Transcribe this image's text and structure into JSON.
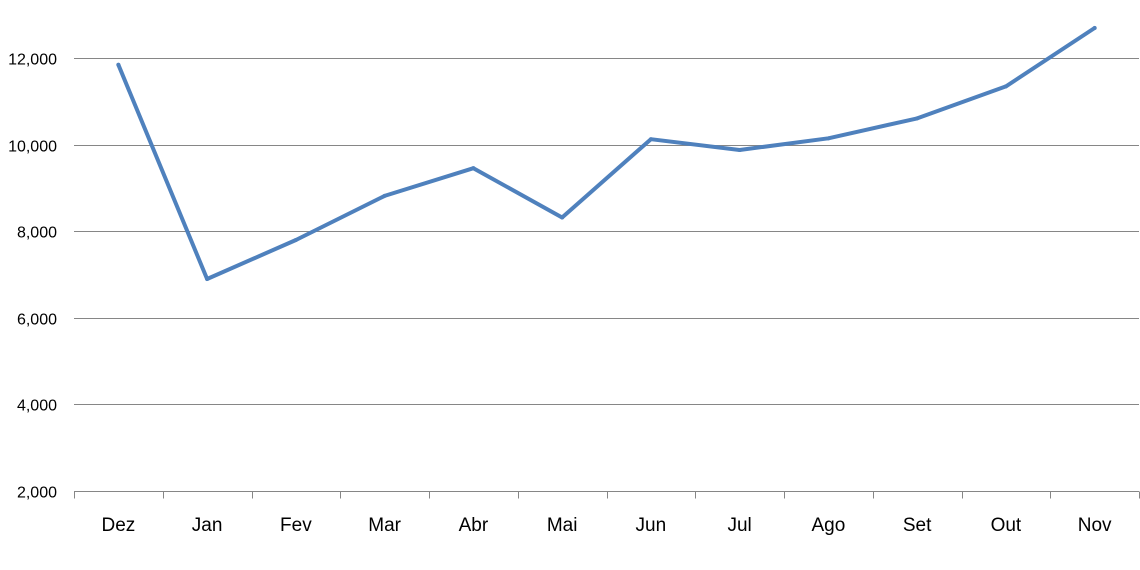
{
  "chart_data": {
    "type": "line",
    "title": "",
    "xlabel": "",
    "ylabel": "",
    "categories": [
      "Dez",
      "Jan",
      "Fev",
      "Mar",
      "Abr",
      "Mai",
      "Jun",
      "Jul",
      "Ago",
      "Set",
      "Out",
      "Nov"
    ],
    "series": [
      {
        "color": "#4f81bd",
        "values": [
          11850,
          6900,
          7800,
          8820,
          9460,
          8320,
          10130,
          9880,
          10150,
          10610,
          11350,
          12700
        ]
      }
    ],
    "ylim": [
      2000,
      13000
    ],
    "yticks": [
      2000,
      4000,
      6000,
      8000,
      10000,
      12000
    ],
    "ytick_labels": [
      "2,000",
      "4,000",
      "6,000",
      "8,000",
      "10,000",
      "12,000"
    ],
    "grid": true,
    "legend": "none"
  }
}
